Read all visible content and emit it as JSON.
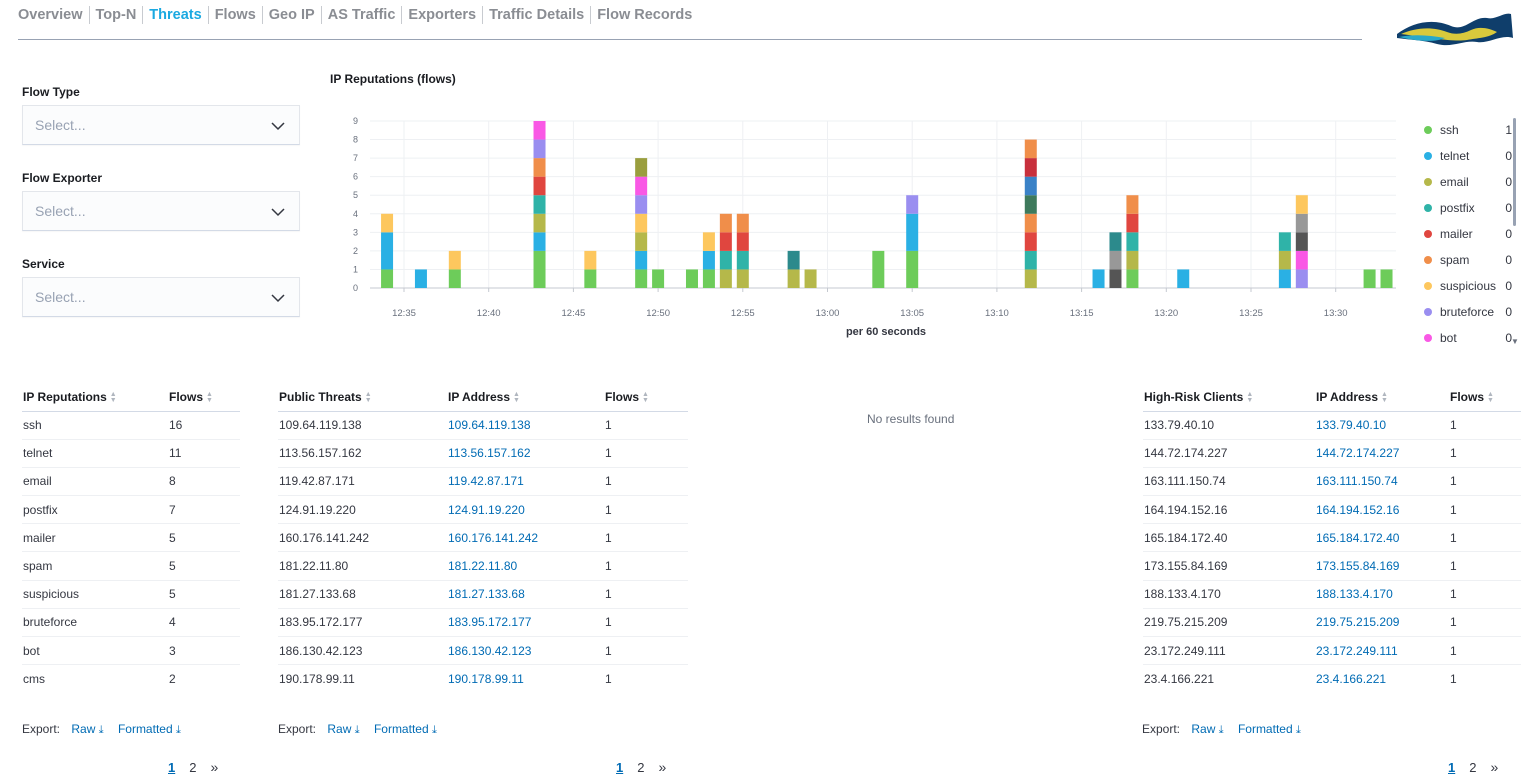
{
  "nav": {
    "tabs": [
      {
        "label": "Overview",
        "active": false
      },
      {
        "label": "Top-N",
        "active": false
      },
      {
        "label": "Threats",
        "active": true
      },
      {
        "label": "Flows",
        "active": false
      },
      {
        "label": "Geo IP",
        "active": false
      },
      {
        "label": "AS Traffic",
        "active": false
      },
      {
        "label": "Exporters",
        "active": false
      },
      {
        "label": "Traffic Details",
        "active": false
      },
      {
        "label": "Flow Records",
        "active": false
      }
    ]
  },
  "filters": {
    "flow_type": {
      "label": "Flow Type",
      "placeholder": "Select..."
    },
    "flow_exporter": {
      "label": "Flow Exporter",
      "placeholder": "Select..."
    },
    "service": {
      "label": "Service",
      "placeholder": "Select..."
    }
  },
  "chart_data": {
    "type": "bar",
    "stacked": true,
    "title": "IP Reputations (flows)",
    "xlabel": "per 60 seconds",
    "ylabel": "",
    "ylim": [
      0,
      9
    ],
    "yticks": [
      "0",
      "1",
      "2",
      "3",
      "4",
      "5",
      "6",
      "7",
      "8",
      "9"
    ],
    "xticks": [
      "12:35",
      "12:40",
      "12:45",
      "12:50",
      "12:55",
      "13:00",
      "13:05",
      "13:10",
      "13:15",
      "13:20",
      "13:25",
      "13:30"
    ],
    "grid": true,
    "legend_position": "right",
    "colors": {
      "ssh": "#6dcc5a",
      "telnet": "#2ab0e4",
      "email": "#b5b84a",
      "postfix": "#2fb3a8",
      "mailer": "#e0463f",
      "spam": "#f08e4a",
      "suspicious": "#fdc75e",
      "bruteforce": "#9a8ef0",
      "bot": "#f958e5",
      "cms": "#3e7a5c",
      "darkteal": "#2c8a8c",
      "gray": "#989898",
      "darkgray": "#555555",
      "olive": "#9a9e3e",
      "crimson": "#c8303c",
      "steel": "#3a82c7"
    },
    "bars": [
      {
        "x": "12:34",
        "stack": [
          [
            "ssh",
            1
          ],
          [
            "telnet",
            2
          ],
          [
            "suspicious",
            1
          ]
        ]
      },
      {
        "x": "12:36",
        "stack": [
          [
            "telnet",
            1
          ]
        ]
      },
      {
        "x": "12:38",
        "stack": [
          [
            "ssh",
            1
          ],
          [
            "suspicious",
            1
          ]
        ]
      },
      {
        "x": "12:43",
        "stack": [
          [
            "ssh",
            2
          ],
          [
            "telnet",
            1
          ],
          [
            "email",
            1
          ],
          [
            "postfix",
            1
          ],
          [
            "mailer",
            1
          ],
          [
            "spam",
            1
          ],
          [
            "bruteforce",
            1
          ],
          [
            "bot",
            1
          ]
        ]
      },
      {
        "x": "12:46",
        "stack": [
          [
            "ssh",
            1
          ],
          [
            "suspicious",
            1
          ]
        ]
      },
      {
        "x": "12:49",
        "stack": [
          [
            "ssh",
            1
          ],
          [
            "telnet",
            1
          ],
          [
            "email",
            1
          ],
          [
            "suspicious",
            1
          ],
          [
            "bruteforce",
            1
          ],
          [
            "bot",
            1
          ],
          [
            "olive",
            1
          ]
        ]
      },
      {
        "x": "12:50",
        "stack": [
          [
            "ssh",
            1
          ]
        ]
      },
      {
        "x": "12:52",
        "stack": [
          [
            "ssh",
            1
          ]
        ]
      },
      {
        "x": "12:53",
        "stack": [
          [
            "ssh",
            1
          ],
          [
            "telnet",
            1
          ],
          [
            "suspicious",
            1
          ]
        ]
      },
      {
        "x": "12:54",
        "stack": [
          [
            "email",
            1
          ],
          [
            "postfix",
            1
          ],
          [
            "mailer",
            1
          ],
          [
            "spam",
            1
          ]
        ]
      },
      {
        "x": "12:55",
        "stack": [
          [
            "email",
            1
          ],
          [
            "postfix",
            1
          ],
          [
            "mailer",
            1
          ],
          [
            "spam",
            1
          ]
        ]
      },
      {
        "x": "12:58",
        "stack": [
          [
            "email",
            1
          ],
          [
            "darkteal",
            1
          ]
        ]
      },
      {
        "x": "12:59",
        "stack": [
          [
            "email",
            1
          ]
        ]
      },
      {
        "x": "13:03",
        "stack": [
          [
            "ssh",
            2
          ]
        ]
      },
      {
        "x": "13:05",
        "stack": [
          [
            "ssh",
            2
          ],
          [
            "telnet",
            2
          ],
          [
            "bruteforce",
            1
          ]
        ]
      },
      {
        "x": "13:12",
        "stack": [
          [
            "email",
            1
          ],
          [
            "postfix",
            1
          ],
          [
            "mailer",
            1
          ],
          [
            "spam",
            1
          ],
          [
            "cms",
            1
          ],
          [
            "steel",
            1
          ],
          [
            "crimson",
            1
          ],
          [
            "spam",
            1
          ]
        ]
      },
      {
        "x": "13:16",
        "stack": [
          [
            "telnet",
            1
          ]
        ]
      },
      {
        "x": "13:17",
        "stack": [
          [
            "darkgray",
            1
          ],
          [
            "gray",
            1
          ],
          [
            "darkteal",
            1
          ]
        ]
      },
      {
        "x": "13:18",
        "stack": [
          [
            "ssh",
            1
          ],
          [
            "email",
            1
          ],
          [
            "postfix",
            1
          ],
          [
            "mailer",
            1
          ],
          [
            "spam",
            1
          ]
        ]
      },
      {
        "x": "13:21",
        "stack": [
          [
            "telnet",
            1
          ]
        ]
      },
      {
        "x": "13:27",
        "stack": [
          [
            "telnet",
            1
          ],
          [
            "email",
            1
          ],
          [
            "postfix",
            1
          ]
        ]
      },
      {
        "x": "13:28",
        "stack": [
          [
            "bruteforce",
            1
          ],
          [
            "bot",
            1
          ],
          [
            "darkgray",
            1
          ],
          [
            "gray",
            1
          ],
          [
            "suspicious",
            1
          ]
        ]
      },
      {
        "x": "13:32",
        "stack": [
          [
            "ssh",
            1
          ]
        ]
      },
      {
        "x": "13:33",
        "stack": [
          [
            "ssh",
            1
          ]
        ]
      }
    ],
    "legend": [
      {
        "name": "ssh",
        "value": "1"
      },
      {
        "name": "telnet",
        "value": "0"
      },
      {
        "name": "email",
        "value": "0"
      },
      {
        "name": "postfix",
        "value": "0"
      },
      {
        "name": "mailer",
        "value": "0"
      },
      {
        "name": "spam",
        "value": "0"
      },
      {
        "name": "suspicious",
        "value": "0"
      },
      {
        "name": "bruteforce",
        "value": "0"
      },
      {
        "name": "bot",
        "value": "0"
      }
    ]
  },
  "reputations_table": {
    "headers": [
      "IP Reputations",
      "Flows"
    ],
    "rows": [
      [
        "ssh",
        "16"
      ],
      [
        "telnet",
        "11"
      ],
      [
        "email",
        "8"
      ],
      [
        "postfix",
        "7"
      ],
      [
        "mailer",
        "5"
      ],
      [
        "spam",
        "5"
      ],
      [
        "suspicious",
        "5"
      ],
      [
        "bruteforce",
        "4"
      ],
      [
        "bot",
        "3"
      ],
      [
        "cms",
        "2"
      ]
    ]
  },
  "public_threats_table": {
    "headers": [
      "Public Threats",
      "IP Address",
      "Flows"
    ],
    "rows": [
      [
        "109.64.119.138",
        "109.64.119.138",
        "1"
      ],
      [
        "113.56.157.162",
        "113.56.157.162",
        "1"
      ],
      [
        "119.42.87.171",
        "119.42.87.171",
        "1"
      ],
      [
        "124.91.19.220",
        "124.91.19.220",
        "1"
      ],
      [
        "160.176.141.242",
        "160.176.141.242",
        "1"
      ],
      [
        "181.22.11.80",
        "181.22.11.80",
        "1"
      ],
      [
        "181.27.133.68",
        "181.27.133.68",
        "1"
      ],
      [
        "183.95.172.177",
        "183.95.172.177",
        "1"
      ],
      [
        "186.130.42.123",
        "186.130.42.123",
        "1"
      ],
      [
        "190.178.99.11",
        "190.178.99.11",
        "1"
      ]
    ]
  },
  "no_results": "No results found",
  "high_risk_table": {
    "headers": [
      "High-Risk Clients",
      "IP Address",
      "Flows"
    ],
    "rows": [
      [
        "133.79.40.10",
        "133.79.40.10",
        "1"
      ],
      [
        "144.72.174.227",
        "144.72.174.227",
        "1"
      ],
      [
        "163.111.150.74",
        "163.111.150.74",
        "1"
      ],
      [
        "164.194.152.16",
        "164.194.152.16",
        "1"
      ],
      [
        "165.184.172.40",
        "165.184.172.40",
        "1"
      ],
      [
        "173.155.84.169",
        "173.155.84.169",
        "1"
      ],
      [
        "188.133.4.170",
        "188.133.4.170",
        "1"
      ],
      [
        "219.75.215.209",
        "219.75.215.209",
        "1"
      ],
      [
        "23.172.249.111",
        "23.172.249.111",
        "1"
      ],
      [
        "23.4.166.221",
        "23.4.166.221",
        "1"
      ]
    ]
  },
  "export": {
    "label": "Export:",
    "raw": "Raw",
    "formatted": "Formatted"
  },
  "pager": {
    "pages": [
      "1",
      "2"
    ],
    "current": "1",
    "next": "»"
  }
}
